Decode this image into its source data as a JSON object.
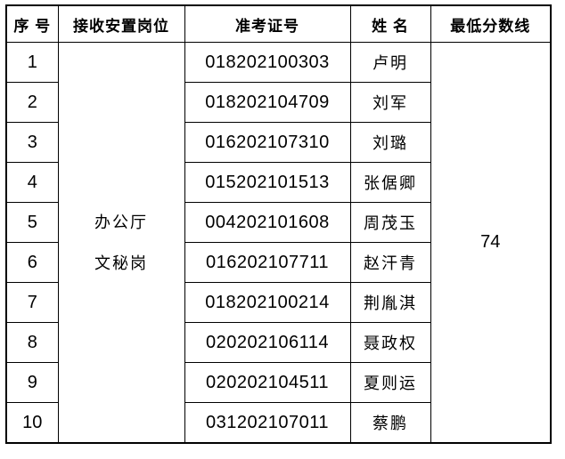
{
  "table": {
    "columns": [
      "序 号",
      "接收安置岗位",
      "准考证号",
      "姓 名",
      "最低分数线"
    ],
    "position": {
      "lines": [
        "办公厅",
        "文秘岗"
      ]
    },
    "min_score": "74",
    "rows": [
      {
        "seq": "1",
        "ticket": "018202100303",
        "name": "卢明"
      },
      {
        "seq": "2",
        "ticket": "018202104709",
        "name": "刘军"
      },
      {
        "seq": "3",
        "ticket": "016202107310",
        "name": "刘璐"
      },
      {
        "seq": "4",
        "ticket": "015202101513",
        "name": "张倨卿"
      },
      {
        "seq": "5",
        "ticket": "004202101608",
        "name": "周茂玉"
      },
      {
        "seq": "6",
        "ticket": "016202107711",
        "name": "赵汗青"
      },
      {
        "seq": "7",
        "ticket": "018202100214",
        "name": "荆胤淇"
      },
      {
        "seq": "8",
        "ticket": "020202106114",
        "name": "聂政权"
      },
      {
        "seq": "9",
        "ticket": "020202104511",
        "name": "夏则运"
      },
      {
        "seq": "10",
        "ticket": "031202107011",
        "name": "蔡鹏"
      }
    ]
  },
  "colors": {
    "border": "#000000",
    "background": "#ffffff",
    "text": "#000000"
  }
}
